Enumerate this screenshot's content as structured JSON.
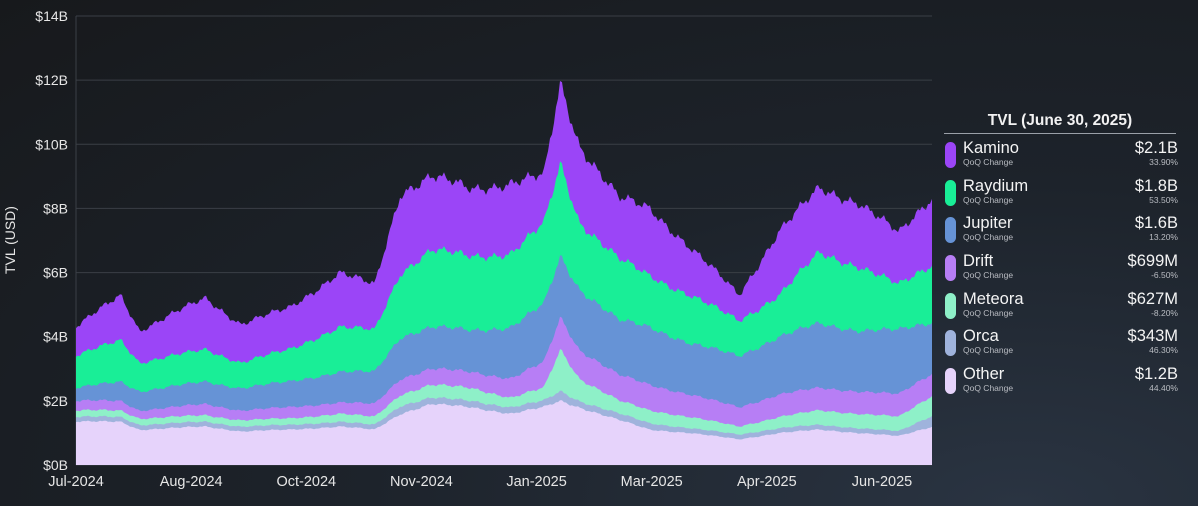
{
  "chart_data": {
    "type": "area",
    "stacked": true,
    "ylabel": "TVL (USD)",
    "ylim": [
      0,
      14
    ],
    "y_unit": "$B",
    "y_ticks": [
      "$0B",
      "$2B",
      "$4B",
      "$6B",
      "$8B",
      "$10B",
      "$12B",
      "$14B"
    ],
    "x_ticks": [
      "Jul-2024",
      "Aug-2024",
      "Oct-2024",
      "Nov-2024",
      "Jan-2025",
      "Mar-2025",
      "Apr-2025",
      "Jun-2025"
    ],
    "grid": true,
    "x": [
      "2024-07-01",
      "2024-07-20",
      "2024-07-28",
      "2024-08-25",
      "2024-09-09",
      "2024-09-30",
      "2024-10-21",
      "2024-11-05",
      "2024-11-16",
      "2024-11-29",
      "2024-12-16",
      "2025-01-02",
      "2025-01-16",
      "2025-01-23",
      "2025-01-31",
      "2025-02-17",
      "2025-03-02",
      "2025-03-19",
      "2025-04-09",
      "2025-04-26",
      "2025-05-13",
      "2025-05-30",
      "2025-06-16",
      "2025-06-30"
    ],
    "series": [
      {
        "name": "Other",
        "color": "#e6d3fb",
        "values": [
          1.35,
          1.35,
          1.1,
          1.2,
          1.05,
          1.1,
          1.2,
          1.1,
          1.6,
          1.9,
          1.8,
          1.6,
          1.8,
          2.0,
          1.8,
          1.4,
          1.1,
          1.0,
          0.8,
          1.0,
          1.1,
          1.0,
          0.9,
          1.2
        ]
      },
      {
        "name": "Orca",
        "color": "#9fb3dc",
        "values": [
          0.15,
          0.15,
          0.15,
          0.15,
          0.15,
          0.15,
          0.15,
          0.15,
          0.25,
          0.2,
          0.2,
          0.2,
          0.2,
          0.3,
          0.2,
          0.2,
          0.2,
          0.15,
          0.15,
          0.15,
          0.15,
          0.15,
          0.15,
          0.34
        ]
      },
      {
        "name": "Meteora",
        "color": "#8ef0c8",
        "values": [
          0.2,
          0.2,
          0.2,
          0.2,
          0.2,
          0.2,
          0.25,
          0.25,
          0.35,
          0.4,
          0.4,
          0.3,
          0.4,
          1.3,
          0.7,
          0.4,
          0.4,
          0.35,
          0.25,
          0.35,
          0.45,
          0.45,
          0.45,
          0.63
        ]
      },
      {
        "name": "Drift",
        "color": "#b77ef5",
        "values": [
          0.3,
          0.3,
          0.25,
          0.35,
          0.3,
          0.35,
          0.35,
          0.4,
          0.5,
          0.5,
          0.5,
          0.6,
          0.8,
          1.0,
          0.9,
          0.8,
          0.8,
          0.7,
          0.6,
          0.7,
          0.7,
          0.7,
          0.7,
          0.7
        ]
      },
      {
        "name": "Jupiter",
        "color": "#6693d6",
        "values": [
          0.4,
          0.6,
          0.6,
          0.7,
          0.7,
          0.8,
          0.95,
          1.0,
          1.3,
          1.3,
          1.3,
          1.6,
          1.8,
          1.9,
          1.9,
          1.7,
          1.8,
          1.6,
          1.6,
          1.8,
          2.0,
          1.9,
          2.0,
          1.6
        ]
      },
      {
        "name": "Raydium",
        "color": "#19ee97",
        "values": [
          1.0,
          1.3,
          0.9,
          1.0,
          0.8,
          1.0,
          1.4,
          1.3,
          2.0,
          2.4,
          2.3,
          2.3,
          2.5,
          2.9,
          2.1,
          1.9,
          1.6,
          1.5,
          1.1,
          1.3,
          2.2,
          2.0,
          1.4,
          1.8
        ]
      },
      {
        "name": "Kamino",
        "color": "#9b45f7",
        "values": [
          0.9,
          1.4,
          1.0,
          1.6,
          1.2,
          1.3,
          1.7,
          1.4,
          2.5,
          2.3,
          2.1,
          2.2,
          1.5,
          2.5,
          2.4,
          1.9,
          2.1,
          1.5,
          0.8,
          2.0,
          2.0,
          2.0,
          1.6,
          2.1
        ]
      }
    ]
  },
  "legend": {
    "title": "TVL (June 30, 2025)",
    "items": [
      {
        "name": "Kamino",
        "color": "#9b45f7",
        "sub": "QoQ Change",
        "value": "$2.1B",
        "change": "33.90%"
      },
      {
        "name": "Raydium",
        "color": "#19ee97",
        "sub": "QoQ Change",
        "value": "$1.8B",
        "change": "53.50%"
      },
      {
        "name": "Jupiter",
        "color": "#6693d6",
        "sub": "QoQ Change",
        "value": "$1.6B",
        "change": "13.20%"
      },
      {
        "name": "Drift",
        "color": "#b77ef5",
        "sub": "QoQ Change",
        "value": "$699M",
        "change": "-6.50%"
      },
      {
        "name": "Meteora",
        "color": "#8ef0c8",
        "sub": "QoQ Change",
        "value": "$627M",
        "change": "-8.20%"
      },
      {
        "name": "Orca",
        "color": "#9fb3dc",
        "sub": "QoQ Change",
        "value": "$343M",
        "change": "46.30%"
      },
      {
        "name": "Other",
        "color": "#e6d3fb",
        "sub": "QoQ Change",
        "value": "$1.2B",
        "change": "44.40%"
      }
    ]
  }
}
